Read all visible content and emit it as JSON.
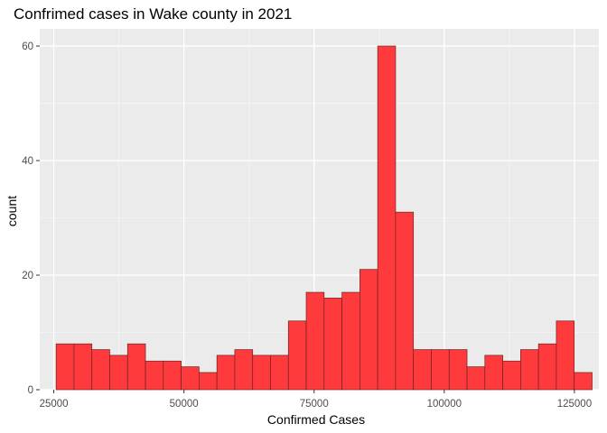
{
  "chart_data": {
    "type": "bar",
    "title": "Confrimed cases in Wake county in 2021",
    "xlabel": "Confirmed Cases",
    "ylabel": "count",
    "xlim": [
      22300,
      129700
    ],
    "ylim": [
      0,
      63
    ],
    "x_ticks": [
      25000,
      50000,
      75000,
      100000,
      125000
    ],
    "y_ticks": [
      0,
      20,
      40,
      60
    ],
    "x_tick_labels": [
      "25000",
      "50000",
      "75000",
      "100000",
      "125000"
    ],
    "y_tick_labels": [
      "0",
      "20",
      "40",
      "60"
    ],
    "x_minor_ticks": [
      37500,
      62500,
      87500,
      112500
    ],
    "y_minor_ticks": [
      10,
      30,
      50
    ],
    "bins_start": 25450,
    "bin_width": 3431.5,
    "counts": [
      8,
      8,
      7,
      6,
      8,
      5,
      5,
      4,
      3,
      6,
      7,
      6,
      6,
      12,
      17,
      16,
      17,
      21,
      60,
      31,
      7,
      7,
      7,
      4,
      6,
      5,
      7,
      8,
      12,
      3
    ],
    "grid": true,
    "legend": "none",
    "colors": {
      "bar_fill": "#ff3a3d",
      "bar_outline": "#6b2424",
      "panel_background": "#ebebeb",
      "grid_major": "#ffffff",
      "grid_minor": "#f5f5f5"
    }
  }
}
